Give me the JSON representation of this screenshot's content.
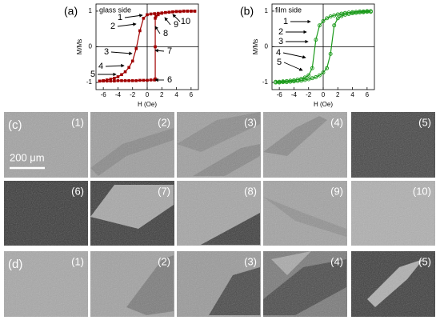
{
  "chart_data": [
    {
      "type": "line",
      "panel_label": "(a)",
      "annotation_title": "glass side",
      "xlabel": "H (Oe)",
      "ylabel": "M/Ms",
      "xlim": [
        -7,
        7
      ],
      "ylim": [
        -1.2,
        1.2
      ],
      "xticks": [
        -6,
        -4,
        -2,
        0,
        2,
        4,
        6
      ],
      "yticks": [
        -1,
        0,
        1
      ],
      "marker": "square",
      "annotations": [
        "1",
        "2",
        "3",
        "4",
        "5",
        "6",
        "7",
        "8",
        "9",
        "10"
      ],
      "series": [
        {
          "color": "#a00000",
          "x": [
            6.5,
            6,
            5.5,
            5,
            4.5,
            4,
            3.5,
            3,
            2.5,
            2,
            1.5,
            1,
            0.5,
            0,
            -0.5,
            -1,
            -1.5,
            -2,
            -2.5,
            -3,
            -3.5,
            -4,
            -4.5,
            -5,
            -5.5,
            -6,
            -6.5
          ],
          "values": [
            1,
            1,
            1,
            1,
            0.99,
            0.99,
            0.98,
            0.97,
            0.96,
            0.95,
            0.94,
            0.93,
            0.92,
            0.9,
            0.8,
            0.45,
            -0.05,
            -0.4,
            -0.58,
            -0.7,
            -0.78,
            -0.84,
            -0.88,
            -0.91,
            -0.93,
            -0.95,
            -0.96
          ]
        },
        {
          "color": "#a00000",
          "x": [
            -6.5,
            -6,
            -5.5,
            -5,
            -4.5,
            -4,
            -3.5,
            -3,
            -2.5,
            -2,
            -1.5,
            -1,
            -0.5,
            0,
            0.5,
            1,
            1.1,
            1.1,
            1.1,
            1.2,
            1.5,
            2,
            2.5,
            3,
            3.5,
            4,
            4.5,
            5,
            5.5,
            6,
            6.5
          ],
          "values": [
            -0.96,
            -0.96,
            -0.96,
            -0.96,
            -0.96,
            -0.95,
            -0.95,
            -0.95,
            -0.95,
            -0.95,
            -0.95,
            -0.94,
            -0.94,
            -0.94,
            -0.93,
            -0.93,
            -0.9,
            0,
            0.8,
            0.86,
            0.9,
            0.94,
            0.96,
            0.97,
            0.98,
            0.99,
            0.99,
            1,
            1,
            1,
            1
          ]
        }
      ]
    },
    {
      "type": "line",
      "panel_label": "(b)",
      "annotation_title": "film side",
      "xlabel": "H (Oe)",
      "ylabel": "M/Ms",
      "xlim": [
        -7,
        7
      ],
      "ylim": [
        -1.2,
        1.2
      ],
      "xticks": [
        -6,
        -4,
        -2,
        0,
        2,
        4,
        6
      ],
      "yticks": [
        -1,
        0,
        1
      ],
      "marker": "circle",
      "annotations": [
        "1",
        "2",
        "3",
        "4",
        "5"
      ],
      "series": [
        {
          "color": "#1a9a1a",
          "x": [
            6.5,
            6,
            5.5,
            5,
            4.5,
            4,
            3.5,
            3,
            2.5,
            2,
            1.5,
            1,
            0.5,
            0,
            -0.5,
            -1,
            -1.5,
            -2,
            -2.5,
            -3,
            -3.5,
            -4,
            -4.5,
            -5,
            -5.5,
            -6,
            -6.5
          ],
          "values": [
            1,
            1,
            0.99,
            0.99,
            0.98,
            0.97,
            0.96,
            0.95,
            0.93,
            0.91,
            0.88,
            0.85,
            0.8,
            0.72,
            0.6,
            0.2,
            -0.6,
            -0.8,
            -0.86,
            -0.9,
            -0.92,
            -0.94,
            -0.95,
            -0.96,
            -0.97,
            -0.98,
            -0.98
          ]
        },
        {
          "color": "#1a9a1a",
          "x": [
            -6.5,
            -6,
            -5.5,
            -5,
            -4.5,
            -4,
            -3.5,
            -3,
            -2.5,
            -2,
            -1.5,
            -1,
            -0.5,
            0,
            0.5,
            1,
            1.5,
            2,
            2.5,
            3,
            3.5,
            4,
            4.5,
            5,
            5.5,
            6,
            6.5
          ],
          "values": [
            -1,
            -1,
            -0.99,
            -0.99,
            -0.98,
            -0.97,
            -0.96,
            -0.95,
            -0.93,
            -0.91,
            -0.88,
            -0.85,
            -0.8,
            -0.72,
            -0.6,
            -0.2,
            0.6,
            0.8,
            0.86,
            0.9,
            0.92,
            0.94,
            0.95,
            0.96,
            0.97,
            0.98,
            0.98
          ]
        }
      ]
    }
  ],
  "panels": [
    {
      "label": "(c)",
      "scale_bar": "200 μm",
      "tiles": [
        "(1)",
        "(2)",
        "(3)",
        "(4)",
        "(5)",
        "(6)",
        "(7)",
        "(8)",
        "(9)",
        "(10)"
      ]
    },
    {
      "label": "(d)",
      "tiles": [
        "(1)",
        "(2)",
        "(3)",
        "(4)",
        "(5)"
      ]
    }
  ]
}
